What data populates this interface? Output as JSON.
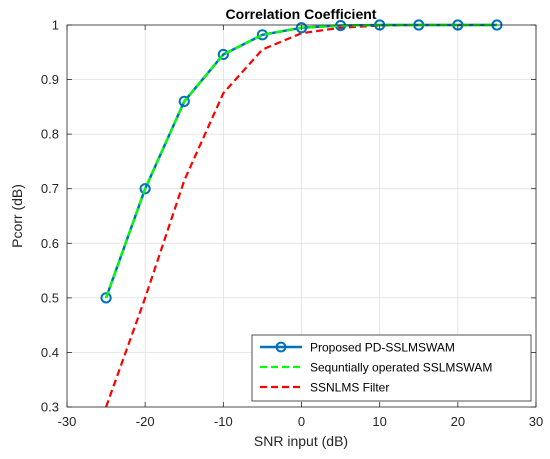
{
  "chart_data": {
    "type": "line",
    "title": "Correlation Coefficient",
    "xlabel": "SNR input (dB)",
    "ylabel": "Pcorr (dB)",
    "xlim": [
      -30,
      30
    ],
    "ylim": [
      0.3,
      1
    ],
    "xticks": [
      -30,
      -20,
      -10,
      0,
      10,
      20,
      30
    ],
    "xtick_labels": [
      "-30",
      "-20",
      "-10",
      "0",
      "10",
      "20",
      "30"
    ],
    "yticks": [
      0.3,
      0.4,
      0.5,
      0.6,
      0.7,
      0.8,
      0.9,
      1
    ],
    "ytick_labels": [
      "0.3",
      "0.4",
      "0.5",
      "0.6",
      "0.7",
      "0.8",
      "0.9",
      "1"
    ],
    "grid": true,
    "legend_position": "bottom-right",
    "series": [
      {
        "name": "Proposed PD-SSLMSWAM",
        "color": "#0072BD",
        "style": "solid",
        "marker": "circle",
        "x": [
          -25,
          -20,
          -15,
          -10,
          -5,
          0,
          5,
          10,
          15,
          20,
          25
        ],
        "y": [
          0.5,
          0.7,
          0.86,
          0.946,
          0.982,
          0.995,
          0.999,
          1.0,
          1.0,
          1.0,
          1.0
        ]
      },
      {
        "name": "Sequntially operated SSLMSWAM",
        "color": "#00FF00",
        "style": "dashed",
        "marker": "none",
        "x": [
          -25,
          -20,
          -15,
          -10,
          -5,
          0,
          5,
          10,
          15,
          20,
          25
        ],
        "y": [
          0.5,
          0.7,
          0.86,
          0.946,
          0.982,
          0.995,
          0.999,
          1.0,
          1.0,
          1.0,
          1.0
        ]
      },
      {
        "name": "SSNLMS Filter",
        "color": "#FF0000",
        "style": "dashed",
        "marker": "none",
        "x": [
          -25,
          -20,
          -15,
          -10,
          -5,
          0,
          5,
          10,
          15,
          20,
          25
        ],
        "y": [
          0.3,
          0.5,
          0.715,
          0.875,
          0.955,
          0.985,
          0.995,
          0.999,
          1.0,
          1.0,
          1.0
        ]
      }
    ]
  }
}
